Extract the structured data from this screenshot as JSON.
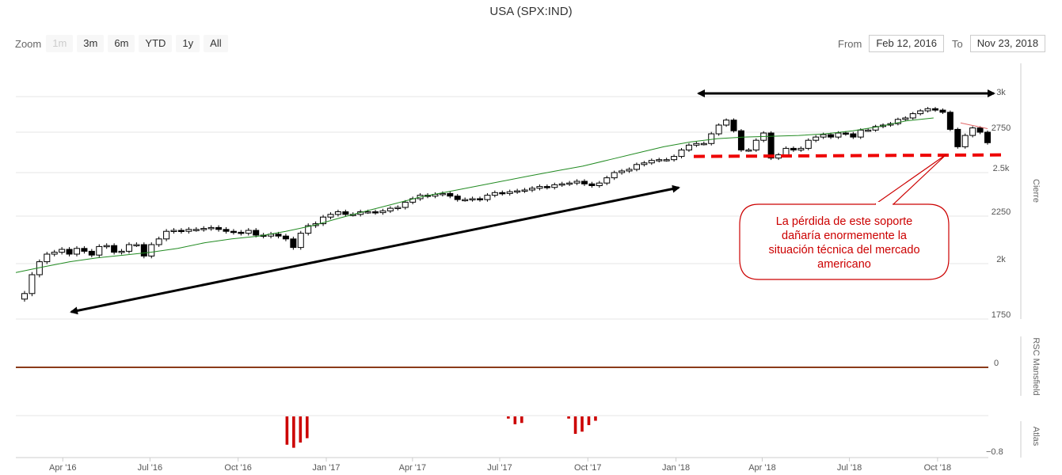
{
  "title": "USA (SPX:IND)",
  "zoom": {
    "label": "Zoom",
    "buttons": [
      "1m",
      "3m",
      "6m",
      "YTD",
      "1y",
      "All"
    ]
  },
  "range": {
    "from_label": "From",
    "from_value": "Feb 12, 2016",
    "to_label": "To",
    "to_value": "Nov 23, 2018"
  },
  "colors": {
    "candle_up": "#ffffff",
    "candle_down": "#000000",
    "ma_line": "#228b22",
    "ma_line_recent": "#e06666",
    "support": "#ee0000",
    "atlas_bars": "#cc0000",
    "rsc_line": "#8b3a1a"
  },
  "annotation": {
    "lines": [
      "La pérdida de este soporte",
      "dañaría enormemente la",
      "situación técnica del mercado",
      "americano"
    ]
  },
  "chart_data": [
    {
      "type": "candlestick",
      "panel": "price",
      "ylabel": "Cierre",
      "y_ticks": [
        "1750",
        "2k",
        "2250",
        "2.5k",
        "2750",
        "3k"
      ],
      "y_tick_values": [
        1750,
        2000,
        2250,
        2500,
        2750,
        3000
      ],
      "ylim": [
        1750,
        3050
      ],
      "x_ticks": [
        "Apr '16",
        "Jul '16",
        "Oct '16",
        "Jan '17",
        "Apr '17",
        "Jul '17",
        "Oct '17",
        "Jan '18",
        "Apr '18",
        "Jul '18",
        "Oct '18"
      ],
      "x_range": [
        "2016-02-12",
        "2018-11-23"
      ],
      "series": [
        {
          "name": "Cierre",
          "weekly_close": [
            1865,
            1950,
            2010,
            2050,
            2060,
            2075,
            2050,
            2080,
            2065,
            2045,
            2090,
            2095,
            2060,
            2065,
            2100,
            2100,
            2040,
            2100,
            2130,
            2170,
            2175,
            2170,
            2180,
            2180,
            2185,
            2190,
            2180,
            2170,
            2165,
            2160,
            2175,
            2150,
            2145,
            2155,
            2145,
            2130,
            2085,
            2160,
            2200,
            2210,
            2245,
            2260,
            2275,
            2260,
            2260,
            2275,
            2275,
            2270,
            2280,
            2295,
            2300,
            2330,
            2350,
            2370,
            2365,
            2375,
            2380,
            2365,
            2345,
            2345,
            2350,
            2345,
            2370,
            2385,
            2380,
            2390,
            2395,
            2400,
            2410,
            2420,
            2415,
            2430,
            2435,
            2440,
            2450,
            2435,
            2425,
            2440,
            2470,
            2500,
            2510,
            2520,
            2550,
            2560,
            2575,
            2580,
            2580,
            2600,
            2640,
            2670,
            2680,
            2680,
            2740,
            2800,
            2835,
            2760,
            2640,
            2640,
            2700,
            2745,
            2590,
            2610,
            2650,
            2640,
            2650,
            2700,
            2720,
            2735,
            2720,
            2745,
            2740,
            2720,
            2765,
            2765,
            2790,
            2800,
            2810,
            2840,
            2850,
            2880,
            2900,
            2915,
            2905,
            2890,
            2770,
            2660,
            2730,
            2780,
            2750,
            2685
          ]
        },
        {
          "name": "MA",
          "values": [
            1960,
            1985,
            2010,
            2030,
            2045,
            2060,
            2080,
            2110,
            2130,
            2145,
            2170,
            2200,
            2240,
            2280,
            2320,
            2360,
            2390,
            2420,
            2450,
            2480,
            2510,
            2540,
            2580,
            2620,
            2660,
            2690,
            2710,
            2720,
            2725,
            2730,
            2740,
            2760,
            2790,
            2830,
            2850,
            2815,
            2775
          ]
        }
      ],
      "support_level": 2600
    },
    {
      "type": "line",
      "panel": "rsc",
      "ylabel": "RSC Mansfield",
      "y_ticks": [
        "0"
      ],
      "values": [
        0,
        0
      ]
    },
    {
      "type": "bar",
      "panel": "atlas",
      "ylabel": "Atlas",
      "y_ticks": [
        "−0.8"
      ],
      "ylim": [
        -0.8,
        0
      ],
      "series": [
        {
          "name": "Atlas",
          "values": [
            -0.65,
            -0.72,
            -0.6,
            -0.5,
            -0.05,
            -0.18,
            -0.15,
            -0.05,
            -0.4,
            -0.35,
            -0.2,
            -0.1
          ]
        }
      ],
      "dates": [
        "2016-11-21",
        "2016-11-28",
        "2016-12-05",
        "2016-12-12",
        "2017-07-10",
        "2017-07-17",
        "2017-07-24",
        "2017-09-11",
        "2017-09-18",
        "2017-09-25",
        "2017-10-02",
        "2017-10-09"
      ]
    }
  ]
}
